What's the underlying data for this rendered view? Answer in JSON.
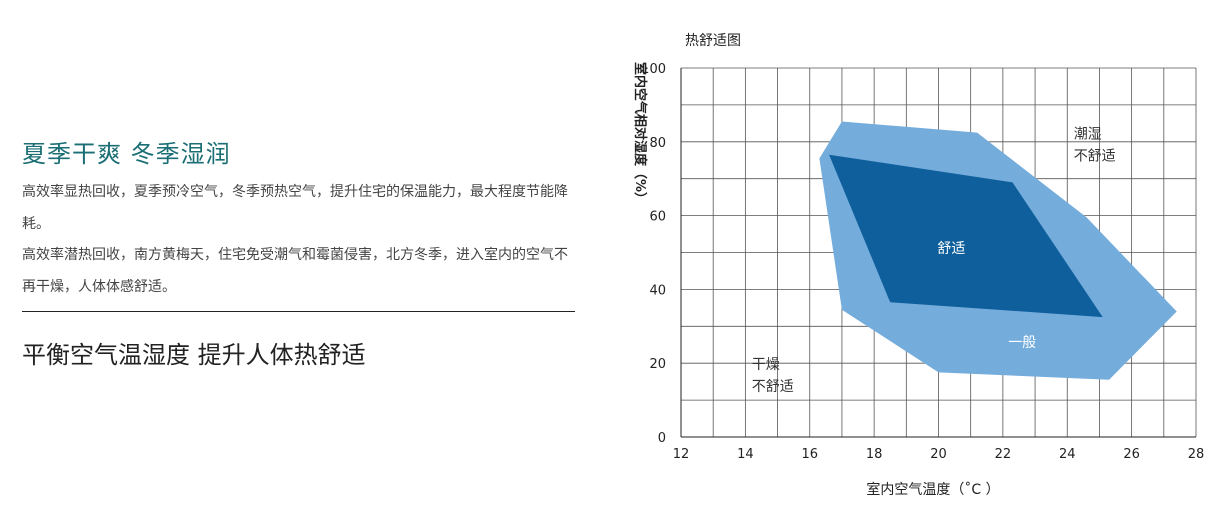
{
  "content": {
    "headline": "夏季干爽 冬季湿润",
    "paragraphs": [
      "高效率显热回收，夏季预冷空气，冬季预热空气，提升住宅的保温能力，最大程度节能降耗。",
      "高效率潜热回收，南方黄梅天，住宅免受潮气和霉菌侵害，北方冬季，进入室内的空气不再干燥，人体体感舒适。"
    ],
    "subheadline": "平衡空气温湿度 提升人体热舒适"
  },
  "colors": {
    "headline": "#1a6e74",
    "comfort": "#0e5f9c",
    "general": "#74acdc",
    "grid": "#555555"
  },
  "chart_data": {
    "type": "area",
    "title": "热舒适图",
    "xlabel": "室内空气温度（˚C ）",
    "ylabel": "室内空气相对湿度（%）",
    "xlim": [
      12,
      28
    ],
    "ylim": [
      0,
      100
    ],
    "x_ticks": [
      "12",
      "14",
      "16",
      "18",
      "20",
      "22",
      "24",
      "26",
      "28"
    ],
    "y_ticks": [
      "0",
      "20",
      "40",
      "60",
      "80",
      "100"
    ],
    "grid": true,
    "series": [
      {
        "name": "一般",
        "color": "#74acdc",
        "points": [
          [
            17.0,
            85.5
          ],
          [
            21.2,
            82.5
          ],
          [
            24.6,
            59.5
          ],
          [
            27.4,
            34.0
          ],
          [
            25.3,
            15.5
          ],
          [
            20.0,
            17.5
          ],
          [
            17.0,
            34.5
          ],
          [
            16.3,
            75.5
          ]
        ]
      },
      {
        "name": "舒适",
        "color": "#0e5f9c",
        "points": [
          [
            16.6,
            76.5
          ],
          [
            22.3,
            69.0
          ],
          [
            25.1,
            32.5
          ],
          [
            18.5,
            36.5
          ]
        ]
      }
    ],
    "annotations": [
      {
        "text": "舒适",
        "x": 20.4,
        "y": 51.0,
        "color": "#ffffff"
      },
      {
        "text": "一般",
        "x": 22.6,
        "y": 25.5,
        "color": "#ffffff"
      },
      {
        "text": "潮湿",
        "x": 24.2,
        "y": 82.0,
        "color": "#333333"
      },
      {
        "text": "不舒适",
        "x": 24.2,
        "y": 76.0,
        "color": "#333333"
      },
      {
        "text": "干燥",
        "x": 14.2,
        "y": 19.5,
        "color": "#333333"
      },
      {
        "text": "不舒适",
        "x": 14.2,
        "y": 13.5,
        "color": "#333333"
      }
    ]
  }
}
